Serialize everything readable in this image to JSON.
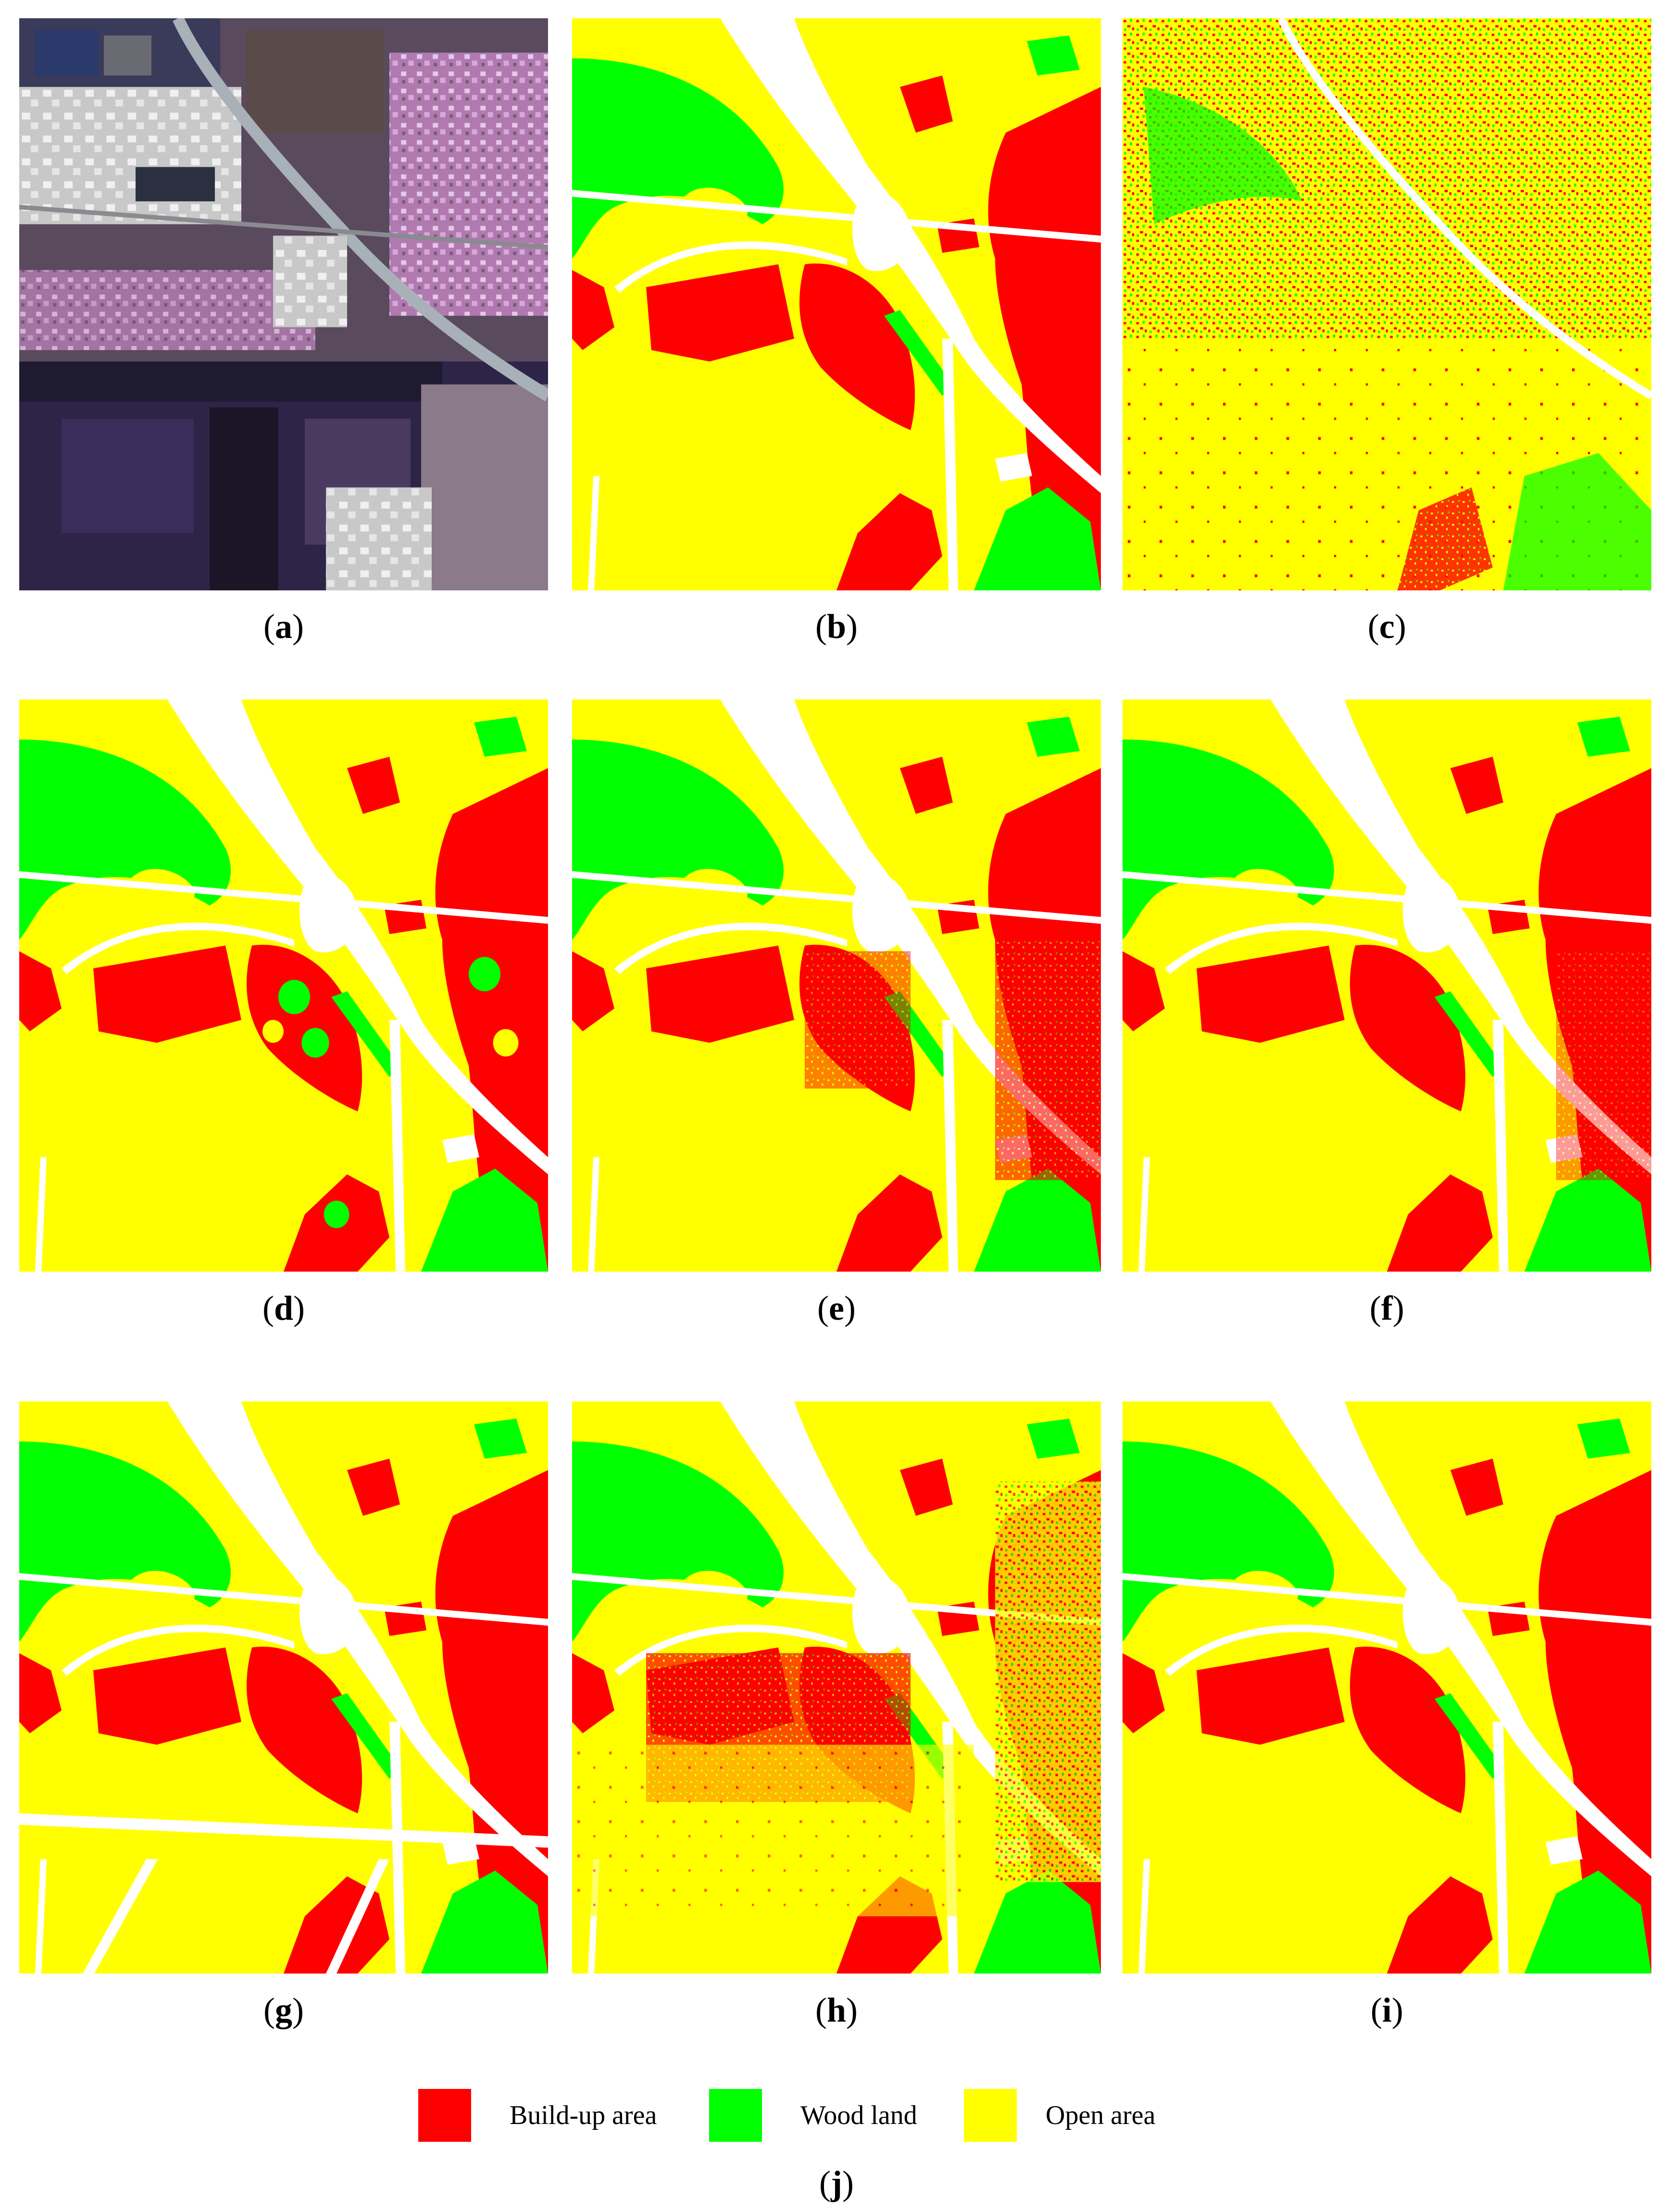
{
  "colors": {
    "build_up": "#ff0000",
    "wood": "#00ff00",
    "open": "#ffff00",
    "road": "#ffffff"
  },
  "panels": [
    {
      "id": "a",
      "label": "a"
    },
    {
      "id": "b",
      "label": "b"
    },
    {
      "id": "c",
      "label": "c"
    },
    {
      "id": "d",
      "label": "d"
    },
    {
      "id": "e",
      "label": "e"
    },
    {
      "id": "f",
      "label": "f"
    },
    {
      "id": "g",
      "label": "g"
    },
    {
      "id": "h",
      "label": "h"
    },
    {
      "id": "i",
      "label": "i"
    }
  ],
  "legend": {
    "label": "j",
    "items": [
      {
        "name": "Build-up area",
        "color": "#ff0000"
      },
      {
        "name": "Wood land",
        "color": "#00ff00"
      },
      {
        "name": "Open area",
        "color": "#ffff00"
      }
    ]
  }
}
